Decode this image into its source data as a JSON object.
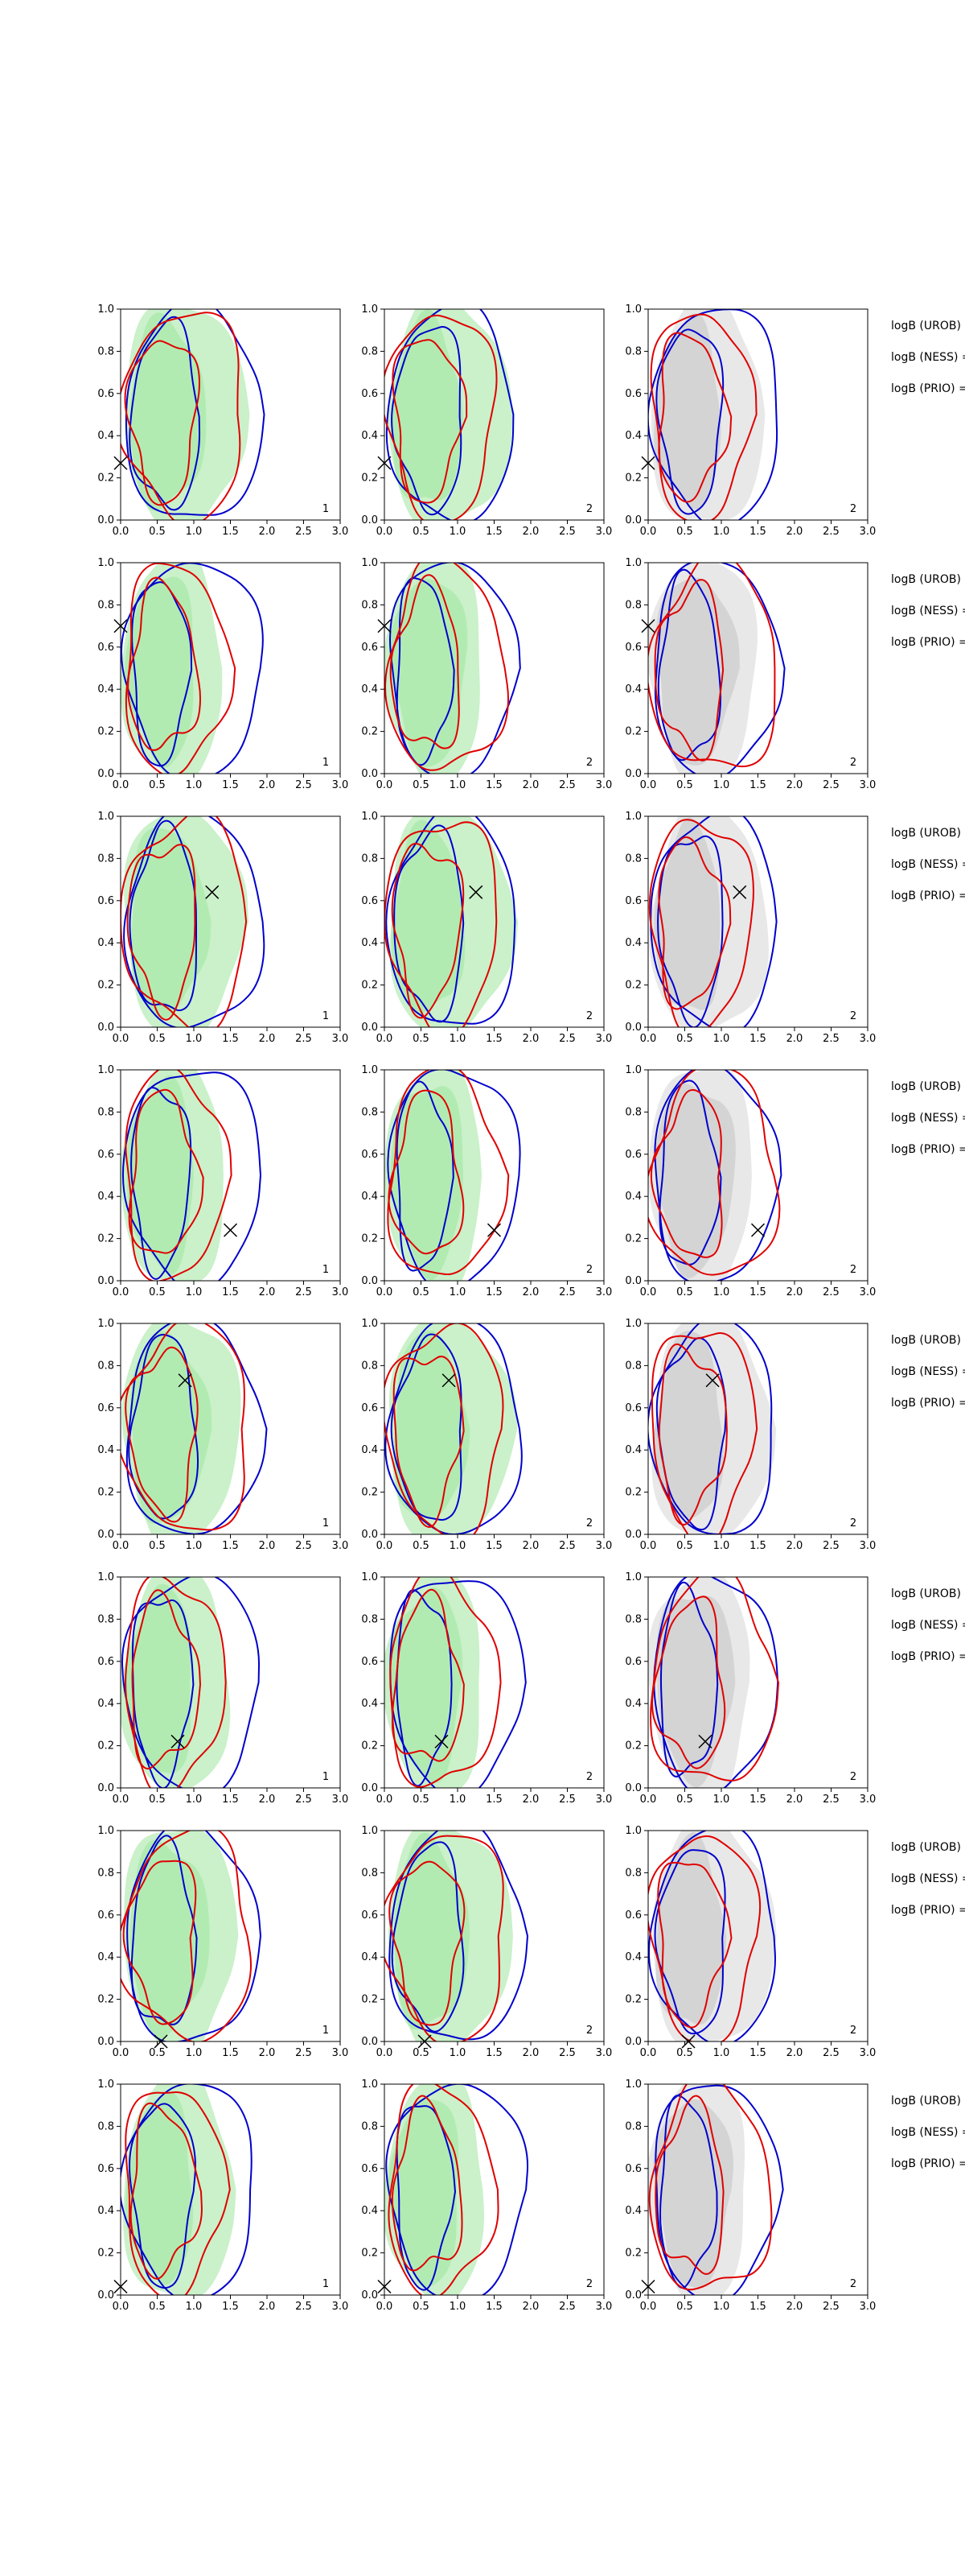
{
  "chart_data": {
    "type": "contour",
    "layout": {
      "rows": 8,
      "columns": 3
    },
    "panel_xlim": [
      0,
      3
    ],
    "panel_ylim": [
      0,
      1
    ],
    "x_ticks": [
      "0.0",
      "0.5",
      "1.0",
      "1.5",
      "2.0",
      "2.5",
      "3.0"
    ],
    "y_ticks": [
      "0.0",
      "0.2",
      "0.4",
      "0.6",
      "0.8",
      "1.0"
    ],
    "colors": {
      "blue_contour": "#0000cc",
      "red_contour": "#e00000",
      "green_fill": "#9fe59f",
      "grey_fill": "#bdbdbd",
      "marker": "#000000"
    },
    "legend_labels": [
      "logB (UROB) =",
      "logB (NESS) =",
      "logB (PRIO) ="
    ],
    "corner_labels": [
      "1",
      "2",
      "2"
    ],
    "rows": [
      {
        "marker": [
          0.0,
          0.27
        ]
      },
      {
        "marker": [
          0.0,
          0.7
        ]
      },
      {
        "marker": [
          1.25,
          0.64
        ]
      },
      {
        "marker": [
          1.5,
          0.24
        ]
      },
      {
        "marker": [
          0.88,
          0.73
        ]
      },
      {
        "marker": [
          0.78,
          0.22
        ]
      },
      {
        "marker": [
          0.55,
          0.0
        ]
      },
      {
        "marker": [
          0.0,
          0.04
        ]
      }
    ]
  }
}
